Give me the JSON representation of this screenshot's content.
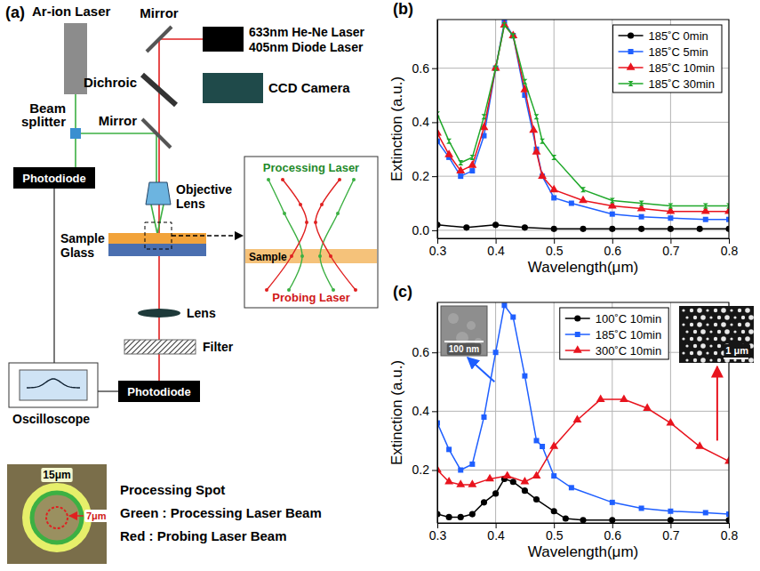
{
  "diagram": {
    "panel": "(a)",
    "labels": {
      "ar_ion": "Ar-ion Laser",
      "mirror_top": "Mirror",
      "he_ne": "633nm He-Ne Laser",
      "diode": "405nm Diode Laser",
      "dichroic": "Dichroic",
      "ccd": "CCD Camera",
      "mirror": "Mirror",
      "beam_splitter": "Beam splitter",
      "photodiode_top": "Photodiode",
      "objective": "Objective Lens",
      "sample": "Sample",
      "glass": "Glass",
      "lens": "Lens",
      "filter": "Filter",
      "oscilloscope": "Oscilloscope",
      "photodiode_bottom": "Photodiode"
    },
    "inset": {
      "top": "Processing Laser",
      "layer": "Sample",
      "bottom": "Probing Laser"
    },
    "spot": {
      "outer": "15μm",
      "inner": "7μm",
      "notes": [
        "Processing Spot",
        "Green : Processing Laser Beam",
        "Red : Probing Laser Beam"
      ]
    }
  },
  "chart_data": [
    {
      "panel": "(b)",
      "type": "line",
      "x_label": "Wavelength(μm)",
      "y_label": "Extinction (a.u.)",
      "xlim": [
        0.3,
        0.8
      ],
      "xticks": [
        0.3,
        0.4,
        0.5,
        0.6,
        0.7,
        0.8
      ],
      "ylim": [
        -0.03,
        0.78
      ],
      "yticks": [
        {
          "value": 0,
          "label": "0.0"
        },
        0.2,
        0.4,
        0.6
      ],
      "grid": true,
      "legend": "top-right",
      "series": [
        {
          "name": "185˚C 0min",
          "color": "#000000",
          "marker": "circle",
          "x": [
            0.3,
            0.35,
            0.4,
            0.45,
            0.5,
            0.55,
            0.6,
            0.65,
            0.7,
            0.75,
            0.8
          ],
          "values": [
            0.02,
            0.01,
            0.02,
            0.01,
            0.005,
            0.005,
            0.005,
            0.005,
            0.005,
            0.005,
            0.005
          ]
        },
        {
          "name": "185˚C 5min",
          "color": "#1f5fff",
          "marker": "square",
          "x": [
            0.3,
            0.32,
            0.34,
            0.36,
            0.38,
            0.4,
            0.415,
            0.43,
            0.45,
            0.47,
            0.48,
            0.5,
            0.53,
            0.6,
            0.65,
            0.7,
            0.76,
            0.8
          ],
          "values": [
            0.33,
            0.27,
            0.2,
            0.22,
            0.35,
            0.6,
            0.77,
            0.72,
            0.5,
            0.3,
            0.2,
            0.12,
            0.1,
            0.06,
            0.05,
            0.045,
            0.04,
            0.04
          ]
        },
        {
          "name": "185˚C 10min",
          "color": "#e8141e",
          "marker": "triangle",
          "x": [
            0.3,
            0.32,
            0.34,
            0.36,
            0.38,
            0.4,
            0.415,
            0.43,
            0.45,
            0.465,
            0.47,
            0.48,
            0.5,
            0.55,
            0.6,
            0.65,
            0.7,
            0.76,
            0.8
          ],
          "values": [
            0.36,
            0.28,
            0.22,
            0.24,
            0.38,
            0.6,
            0.76,
            0.72,
            0.52,
            0.37,
            0.29,
            0.2,
            0.15,
            0.11,
            0.09,
            0.08,
            0.07,
            0.07,
            0.07
          ]
        },
        {
          "name": "185˚C 30min",
          "color": "#1fa82a",
          "marker": "hourglass",
          "x": [
            0.3,
            0.32,
            0.34,
            0.36,
            0.38,
            0.4,
            0.415,
            0.43,
            0.45,
            0.47,
            0.48,
            0.5,
            0.55,
            0.6,
            0.65,
            0.7,
            0.76,
            0.8
          ],
          "values": [
            0.43,
            0.33,
            0.25,
            0.27,
            0.42,
            0.6,
            0.76,
            0.72,
            0.55,
            0.42,
            0.33,
            0.27,
            0.15,
            0.11,
            0.1,
            0.09,
            0.09,
            0.09
          ]
        }
      ]
    },
    {
      "panel": "(c)",
      "type": "line",
      "x_label": "Wavelength(μm)",
      "y_label": "Extinction (a.u.)",
      "xlim": [
        0.3,
        0.8
      ],
      "xticks": [
        0.3,
        0.4,
        0.5,
        0.6,
        0.7,
        0.8
      ],
      "ylim": [
        0.02,
        0.77
      ],
      "yticks": [
        0.2,
        0.4,
        0.6
      ],
      "grid": true,
      "legend": "top",
      "insets": [
        {
          "scale_label": "100 nm"
        },
        {
          "scale_label": "1 μm"
        }
      ],
      "series": [
        {
          "name": "100˚C 10min",
          "color": "#000000",
          "marker": "circle",
          "x": [
            0.3,
            0.32,
            0.34,
            0.36,
            0.38,
            0.4,
            0.415,
            0.43,
            0.45,
            0.47,
            0.5,
            0.52,
            0.55,
            0.6,
            0.7,
            0.8
          ],
          "values": [
            0.05,
            0.04,
            0.04,
            0.05,
            0.09,
            0.12,
            0.17,
            0.16,
            0.13,
            0.1,
            0.06,
            0.035,
            0.03,
            0.03,
            0.03,
            0.03
          ]
        },
        {
          "name": "185˚C 10min",
          "color": "#1f5fff",
          "marker": "square",
          "x": [
            0.3,
            0.32,
            0.34,
            0.36,
            0.38,
            0.4,
            0.415,
            0.43,
            0.45,
            0.47,
            0.48,
            0.5,
            0.53,
            0.6,
            0.65,
            0.7,
            0.76,
            0.8
          ],
          "values": [
            0.36,
            0.27,
            0.2,
            0.22,
            0.38,
            0.6,
            0.76,
            0.72,
            0.52,
            0.3,
            0.28,
            0.18,
            0.14,
            0.09,
            0.07,
            0.06,
            0.055,
            0.05
          ]
        },
        {
          "name": "300˚C 10min",
          "color": "#e8141e",
          "marker": "triangle",
          "x": [
            0.3,
            0.32,
            0.34,
            0.36,
            0.39,
            0.42,
            0.45,
            0.47,
            0.5,
            0.54,
            0.58,
            0.62,
            0.66,
            0.7,
            0.75,
            0.8
          ],
          "values": [
            0.2,
            0.16,
            0.15,
            0.15,
            0.17,
            0.18,
            0.16,
            0.18,
            0.28,
            0.37,
            0.44,
            0.44,
            0.41,
            0.36,
            0.28,
            0.23
          ]
        }
      ]
    }
  ]
}
